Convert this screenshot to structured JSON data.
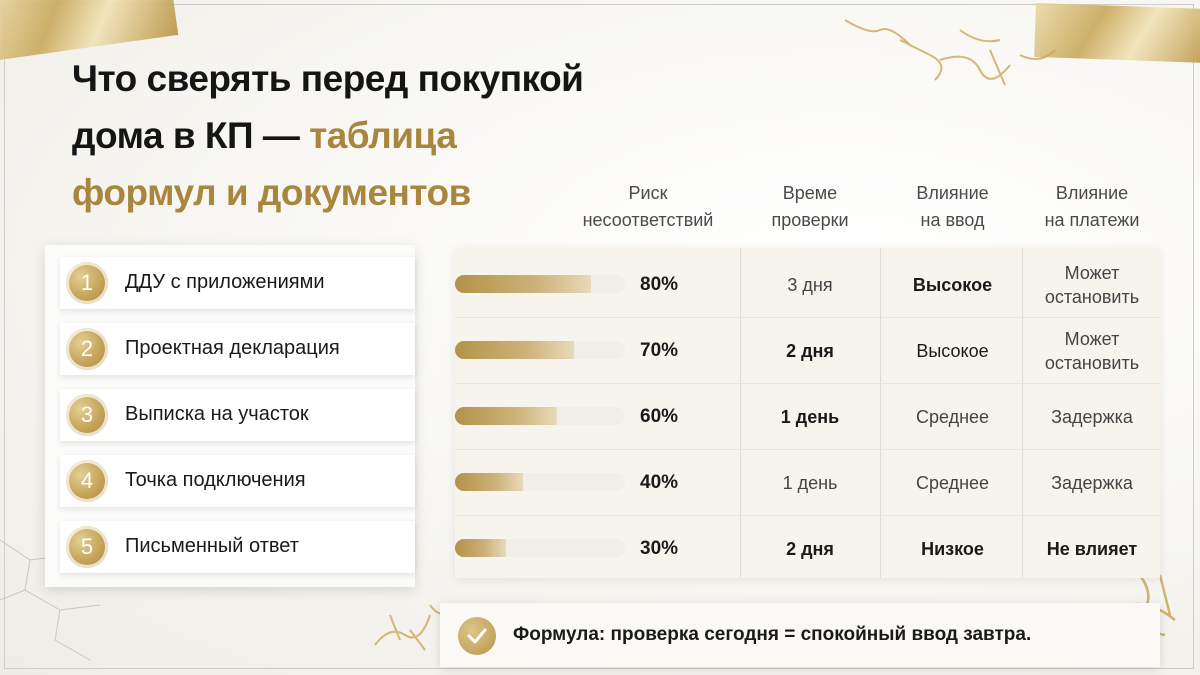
{
  "title": {
    "line1": "Что сверять перед покупкой",
    "line2_dark": "дома в КП — ",
    "line2_gold": "таблица",
    "line3_gold": "формул и документов"
  },
  "columns": [
    {
      "line1": "Риск",
      "line2": "несоответствий"
    },
    {
      "line1": "Време",
      "line2": "проверки"
    },
    {
      "line1": "Влияние",
      "line2": "на ввод"
    },
    {
      "line1": "Влияние",
      "line2": "на платежи"
    }
  ],
  "rows": [
    {
      "num": "1",
      "label": "ДДУ с приложениями",
      "risk": 0.8,
      "risk_text": "80%",
      "time": "3 дня",
      "input": "Высокое",
      "pay1": "Может",
      "pay2": "остановить"
    },
    {
      "num": "2",
      "label": "Проектная декларация",
      "risk": 0.7,
      "risk_text": "70%",
      "time": "2 дня",
      "input": "Высокое",
      "pay1": "Может",
      "pay2": "остановить"
    },
    {
      "num": "3",
      "label": "Выписка на участок",
      "risk": 0.6,
      "risk_text": "60%",
      "time": "1 день",
      "input": "Среднее",
      "pay1": "Задержка",
      "pay2": ""
    },
    {
      "num": "4",
      "label": "Точка подключения",
      "risk": 0.4,
      "risk_text": "40%",
      "time": "1 день",
      "input": "Среднее",
      "pay1": "Задержка",
      "pay2": ""
    },
    {
      "num": "5",
      "label": "Письменный ответ",
      "risk": 0.3,
      "risk_text": "30%",
      "time": "2 дня",
      "input": "Низкое",
      "pay1": "Не влияет",
      "pay2": ""
    }
  ],
  "formula": {
    "text": "Формула: проверка сегодня = спокойный ввод завтра.",
    "icon": "check-circle-icon"
  },
  "colors": {
    "gold": "#a8863e",
    "text": "#151515"
  }
}
